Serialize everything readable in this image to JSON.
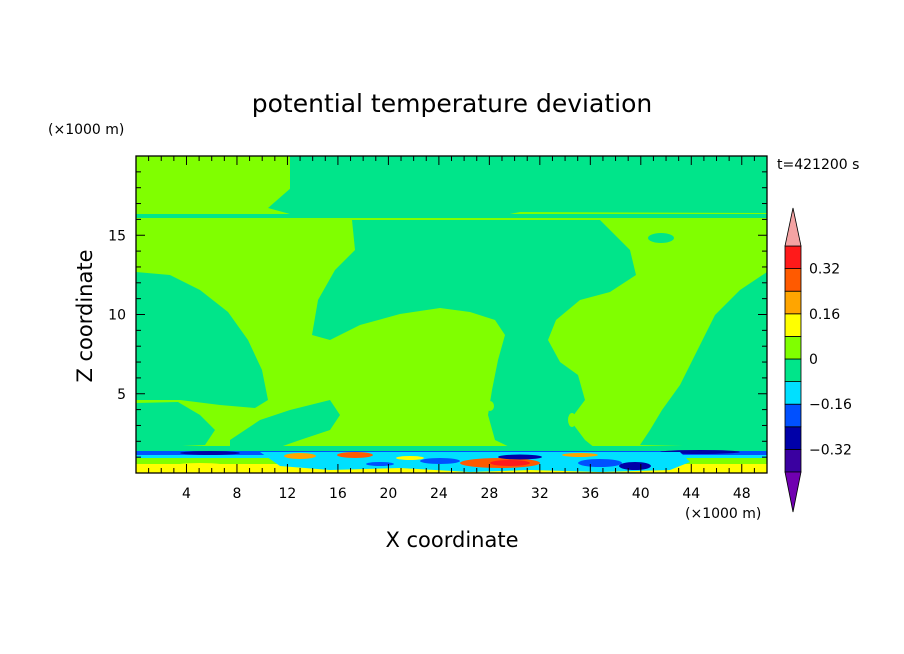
{
  "chart_data": {
    "type": "heatmap",
    "title": "potential temperature deviation",
    "time_label": "t=421200 s",
    "xlabel": "X coordinate",
    "ylabel": "Z coordinate",
    "x_unit": "(×1000 m)",
    "y_unit": "(×1000 m)",
    "xlim": [
      0,
      50
    ],
    "ylim": [
      0,
      20
    ],
    "x_ticks": [
      4,
      8,
      12,
      16,
      20,
      24,
      28,
      32,
      36,
      40,
      44,
      48
    ],
    "y_ticks": [
      5,
      10,
      15
    ],
    "colorbar": {
      "labels": [
        "0.32",
        "0.16",
        "0",
        "−0.16",
        "−0.32"
      ],
      "label_values": [
        0.32,
        0.16,
        0,
        -0.16,
        -0.32
      ],
      "levels": [
        -0.4,
        -0.32,
        -0.24,
        -0.16,
        -0.08,
        0,
        0.08,
        0.16,
        0.24,
        0.32,
        0.4
      ],
      "band_colors": [
        "#3a00a0",
        "#0000a8",
        "#0050ff",
        "#00e0ff",
        "#00e58a",
        "#80ff00",
        "#ffff00",
        "#ffa500",
        "#ff5a00",
        "#ff1a1a"
      ],
      "over_color": "#f4a3a3",
      "under_color": "#7000b0"
    },
    "colors": {
      "positive_small": "#80ff00",
      "negative_small": "#00e58a"
    }
  }
}
